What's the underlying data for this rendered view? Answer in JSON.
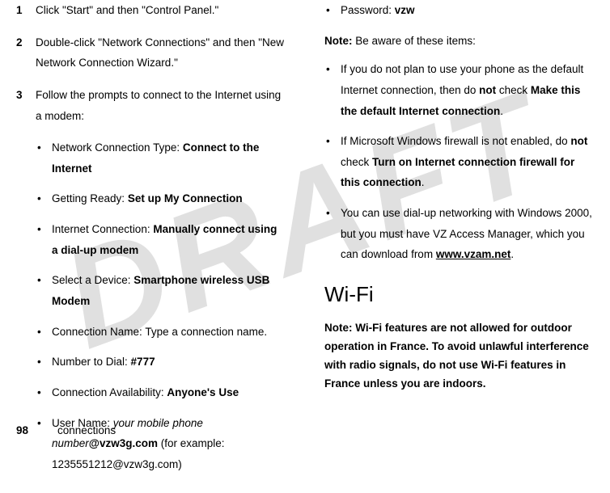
{
  "watermark": "DRAFT",
  "footer": {
    "page": "98",
    "section": "connections"
  },
  "left": {
    "steps": [
      {
        "n": "1",
        "text": "Click \"Start\" and then \"Control Panel.\""
      },
      {
        "n": "2",
        "text": "Double-click \"Network Connections\" and then \"New Network Connection Wizard.\""
      },
      {
        "n": "3",
        "text": "Follow the prompts to connect to the Internet using a modem:"
      }
    ],
    "items": {
      "netType": {
        "label": "Network Connection Type: ",
        "val": "Connect to the Internet"
      },
      "ready": {
        "label": "Getting Ready: ",
        "val": "Set up My Connection"
      },
      "inet": {
        "label": "Internet Connection: ",
        "val": "Manually connect using a dial-up modem"
      },
      "device": {
        "label": "Select a Device: ",
        "val": "Smartphone wireless USB Modem"
      },
      "cname": {
        "label": "Connection Name: Type a connection name."
      },
      "dial": {
        "label": "Number to Dial: ",
        "val": "#777"
      },
      "avail": {
        "label": "Connection Availability: ",
        "val": "Anyone's Use"
      },
      "user": {
        "label": "User Name: ",
        "ital": "your mobile phone number",
        "bold": "@vzw3g.com",
        "tail": " (for example: 1235551212@vzw3g.com)"
      }
    }
  },
  "right": {
    "pw": {
      "label": "Password: ",
      "val": "vzw"
    },
    "noteLabel": "Note:",
    "noteText": " Be aware of these items:",
    "bullets": {
      "b1": {
        "pre": "If you do not plan to use your phone as the default Internet connection, then do ",
        "bold1": "not",
        "mid": " check ",
        "cond1": "Make this the default Internet connection",
        "end": "."
      },
      "b2": {
        "pre": "If Microsoft Windows firewall is not enabled, do ",
        "bold1": "not",
        "mid": " check ",
        "cond1": "Turn on Internet connection firewall for this connection",
        "end": "."
      },
      "b3": {
        "pre": "You can use dial-up networking with Windows 2000, but you must have VZ Access Manager, which you can download from ",
        "link": "www.vzam.net",
        "end": "."
      }
    },
    "h2": "Wi-Fi",
    "note2": "Note: Wi-Fi features are not allowed for outdoor operation in France. To avoid unlawful interference with radio signals, do not use Wi-Fi features in France unless you are indoors."
  }
}
